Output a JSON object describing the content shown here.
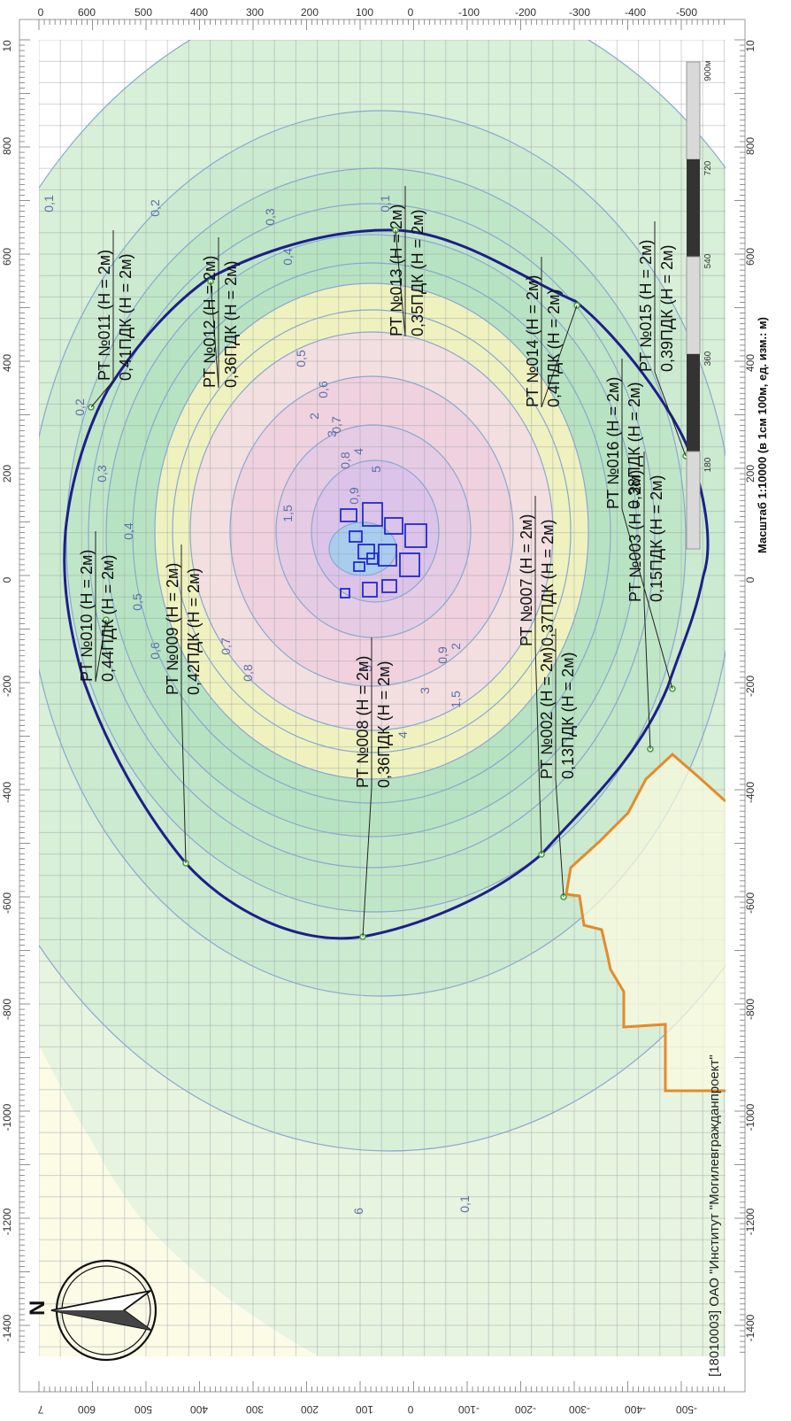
{
  "map": {
    "scale_caption": "Масштаб 1:10000 (в 1см 100м, ед. изм.: м)",
    "credit": "[18010003] ОАО \"Институт \"Могилевгражданпроект\"",
    "facility_label": "Могилевгражданпроект",
    "compass_letter": "N",
    "scale_bar": [
      "180",
      "360",
      "540",
      "720",
      "900м"
    ],
    "colors": {
      "sanitary_zone": "#1d1f8a",
      "boundary": "#e58a2a",
      "contour_line": "#7ea0c8",
      "source": "#1f2bd0",
      "fill_low": "#dff0dc",
      "fill_mid": "#c0e8c4",
      "fill_yellow": "#f4f3b8",
      "fill_pink": "#f1d8e2",
      "fill_purple": "#ddc8ea",
      "fill_blue": "#a9cdee"
    }
  },
  "ruler": {
    "top": [
      "0",
      "600",
      "500",
      "400",
      "300",
      "200",
      "100",
      "0",
      "-100",
      "-200",
      "-300",
      "-400",
      "-500"
    ],
    "bottom": [
      "7",
      "600",
      "500",
      "400",
      "300",
      "200",
      "100",
      "0",
      "-100",
      "-200",
      "-300",
      "-400",
      "-500"
    ],
    "left": [
      "10",
      "800",
      "600",
      "400",
      "200",
      "0",
      "-200",
      "-400",
      "-600",
      "-800",
      "-1000",
      "-1200",
      "-1400"
    ],
    "right": [
      "10",
      "800",
      "600",
      "400",
      "200",
      "0",
      "-200",
      "-400",
      "-600",
      "-800",
      "-1000",
      "-1200",
      "-1400"
    ]
  },
  "contour_labels": [
    "0,1",
    "0,2",
    "0,3",
    "0,4",
    "0,5",
    "0,6",
    "0,7",
    "0,8",
    "0,9",
    "1,5",
    "2",
    "3",
    "4",
    "5",
    "0,1",
    "0,2",
    "0,3",
    "0,4",
    "0,5",
    "0,6",
    "0,7",
    "0,8",
    "0,9",
    "1,5",
    "2",
    "3",
    "4",
    "5",
    "6",
    "0,1"
  ],
  "points": [
    {
      "id": "РТ №010 (Н = 2м)",
      "value": "0,44ПДК (Н = 2м)"
    },
    {
      "id": "РТ №011 (Н = 2м)",
      "value": "0,41ПДК (Н = 2м)"
    },
    {
      "id": "РТ №012 (Н = 2м)",
      "value": "0,36ПДК (Н = 2м)"
    },
    {
      "id": "РТ №013 (Н = 2м)",
      "value": "0,35ПДК (Н = 2м)"
    },
    {
      "id": "РТ №014 (Н = 2м)",
      "value": "0,4ПДК (Н = 2м)"
    },
    {
      "id": "РТ №015 (Н = 2м)",
      "value": "0,39ПДК (Н = 2м)"
    },
    {
      "id": "РТ №016 (Н = 2м)",
      "value": "0,38ПДК (Н = 2м)"
    },
    {
      "id": "РТ №007 (Н = 2м)",
      "value": "0,37ПДК (Н = 2м)"
    },
    {
      "id": "РТ №008 (Н = 2м)",
      "value": "0,36ПДК (Н = 2м)"
    },
    {
      "id": "РТ №009 (Н = 2м)",
      "value": "0,42ПДК (Н = 2м)"
    },
    {
      "id": "РТ №002 (Н = 2м)",
      "value": "0,13ПДК (Н = 2м)"
    },
    {
      "id": "РТ №003 (Н = 2м)",
      "value": "0,15ПДК (Н = 2м)"
    }
  ]
}
